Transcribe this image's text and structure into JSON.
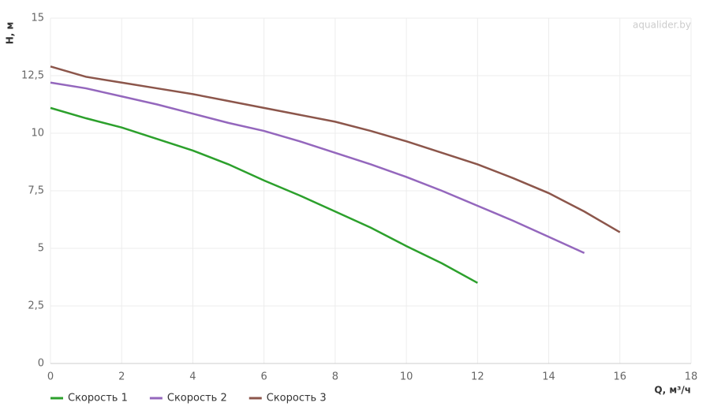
{
  "chart_data": {
    "type": "line",
    "watermark": "aqualider.by",
    "x_label": "Q, м³/ч",
    "y_label": "H, м",
    "xlim": [
      0,
      18
    ],
    "xticks": [
      0,
      2,
      4,
      6,
      8,
      10,
      12,
      14,
      16,
      18
    ],
    "ylim": [
      0,
      15
    ],
    "yticks": [
      0,
      {
        "value": 2.5,
        "label": "2,5"
      },
      5,
      {
        "value": 7.5,
        "label": "7,5"
      },
      10,
      {
        "value": 12.5,
        "label": "12,5"
      },
      15
    ],
    "grid": true,
    "legend": "bottom-left",
    "series": [
      {
        "name": "Скорость 1",
        "color": "#2ca02c",
        "x": [
          0,
          1,
          2,
          3,
          4,
          5,
          6,
          7,
          8,
          9,
          10,
          11,
          12
        ],
        "values": [
          11.1,
          10.65,
          10.25,
          9.75,
          9.25,
          8.65,
          7.95,
          7.3,
          6.6,
          5.9,
          5.1,
          4.35,
          3.5
        ]
      },
      {
        "name": "Скорость 2",
        "color": "#9467bd",
        "x": [
          0,
          1,
          2,
          3,
          4,
          5,
          6,
          7,
          8,
          9,
          10,
          11,
          12,
          13,
          14,
          15
        ],
        "values": [
          12.2,
          11.95,
          11.6,
          11.25,
          10.85,
          10.45,
          10.1,
          9.65,
          9.15,
          8.65,
          8.1,
          7.5,
          6.85,
          6.2,
          5.5,
          4.8
        ]
      },
      {
        "name": "Скорость 3",
        "color": "#8c564b",
        "x": [
          0,
          1,
          2,
          3,
          4,
          5,
          6,
          7,
          8,
          9,
          10,
          11,
          12,
          13,
          14,
          15,
          16
        ],
        "values": [
          12.9,
          12.45,
          12.2,
          11.95,
          11.7,
          11.4,
          11.1,
          10.8,
          10.5,
          10.1,
          9.65,
          9.15,
          8.65,
          8.05,
          7.4,
          6.6,
          5.7
        ]
      }
    ]
  }
}
